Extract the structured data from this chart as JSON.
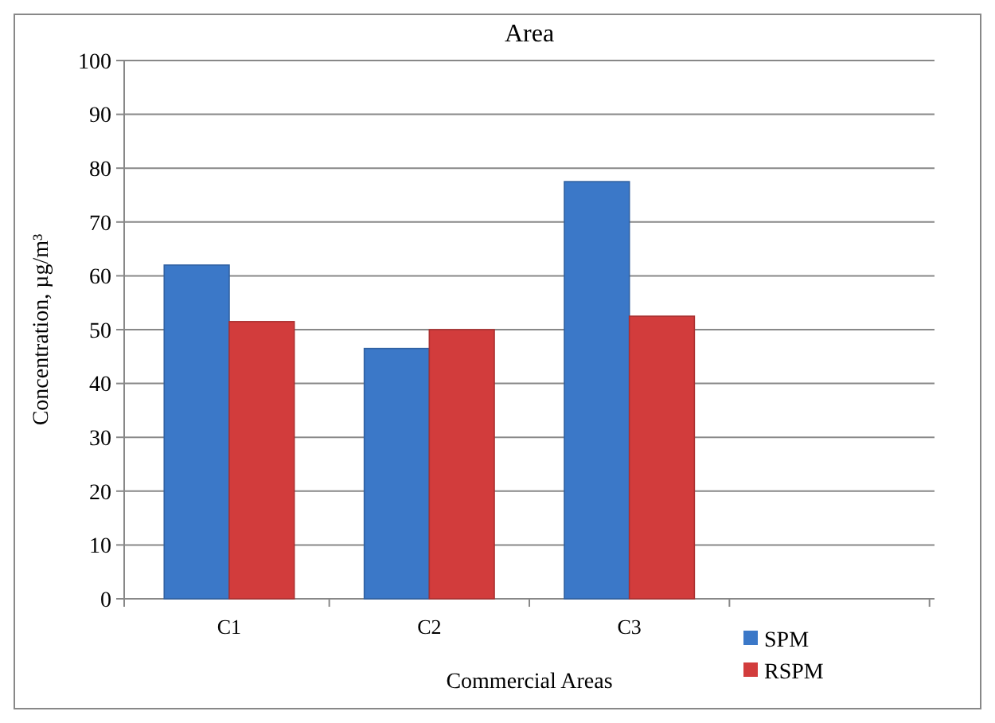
{
  "chart_data": {
    "type": "bar",
    "title": "Area",
    "xlabel": "Commercial  Areas",
    "ylabel": "Concentration, µg/m³",
    "categories": [
      "C1",
      "C2",
      "C3",
      null
    ],
    "series": [
      {
        "name": "SPM",
        "color": "#3b78c8",
        "values": [
          62,
          46.5,
          77.5,
          null
        ]
      },
      {
        "name": "RSPM",
        "color": "#d23c3c",
        "values": [
          51.5,
          50,
          52.5,
          null
        ]
      }
    ],
    "ylim": [
      0,
      100
    ],
    "yticks": [
      0,
      10,
      20,
      30,
      40,
      50,
      60,
      70,
      80,
      90,
      100
    ],
    "grid": "y",
    "legend": "bottom right"
  }
}
